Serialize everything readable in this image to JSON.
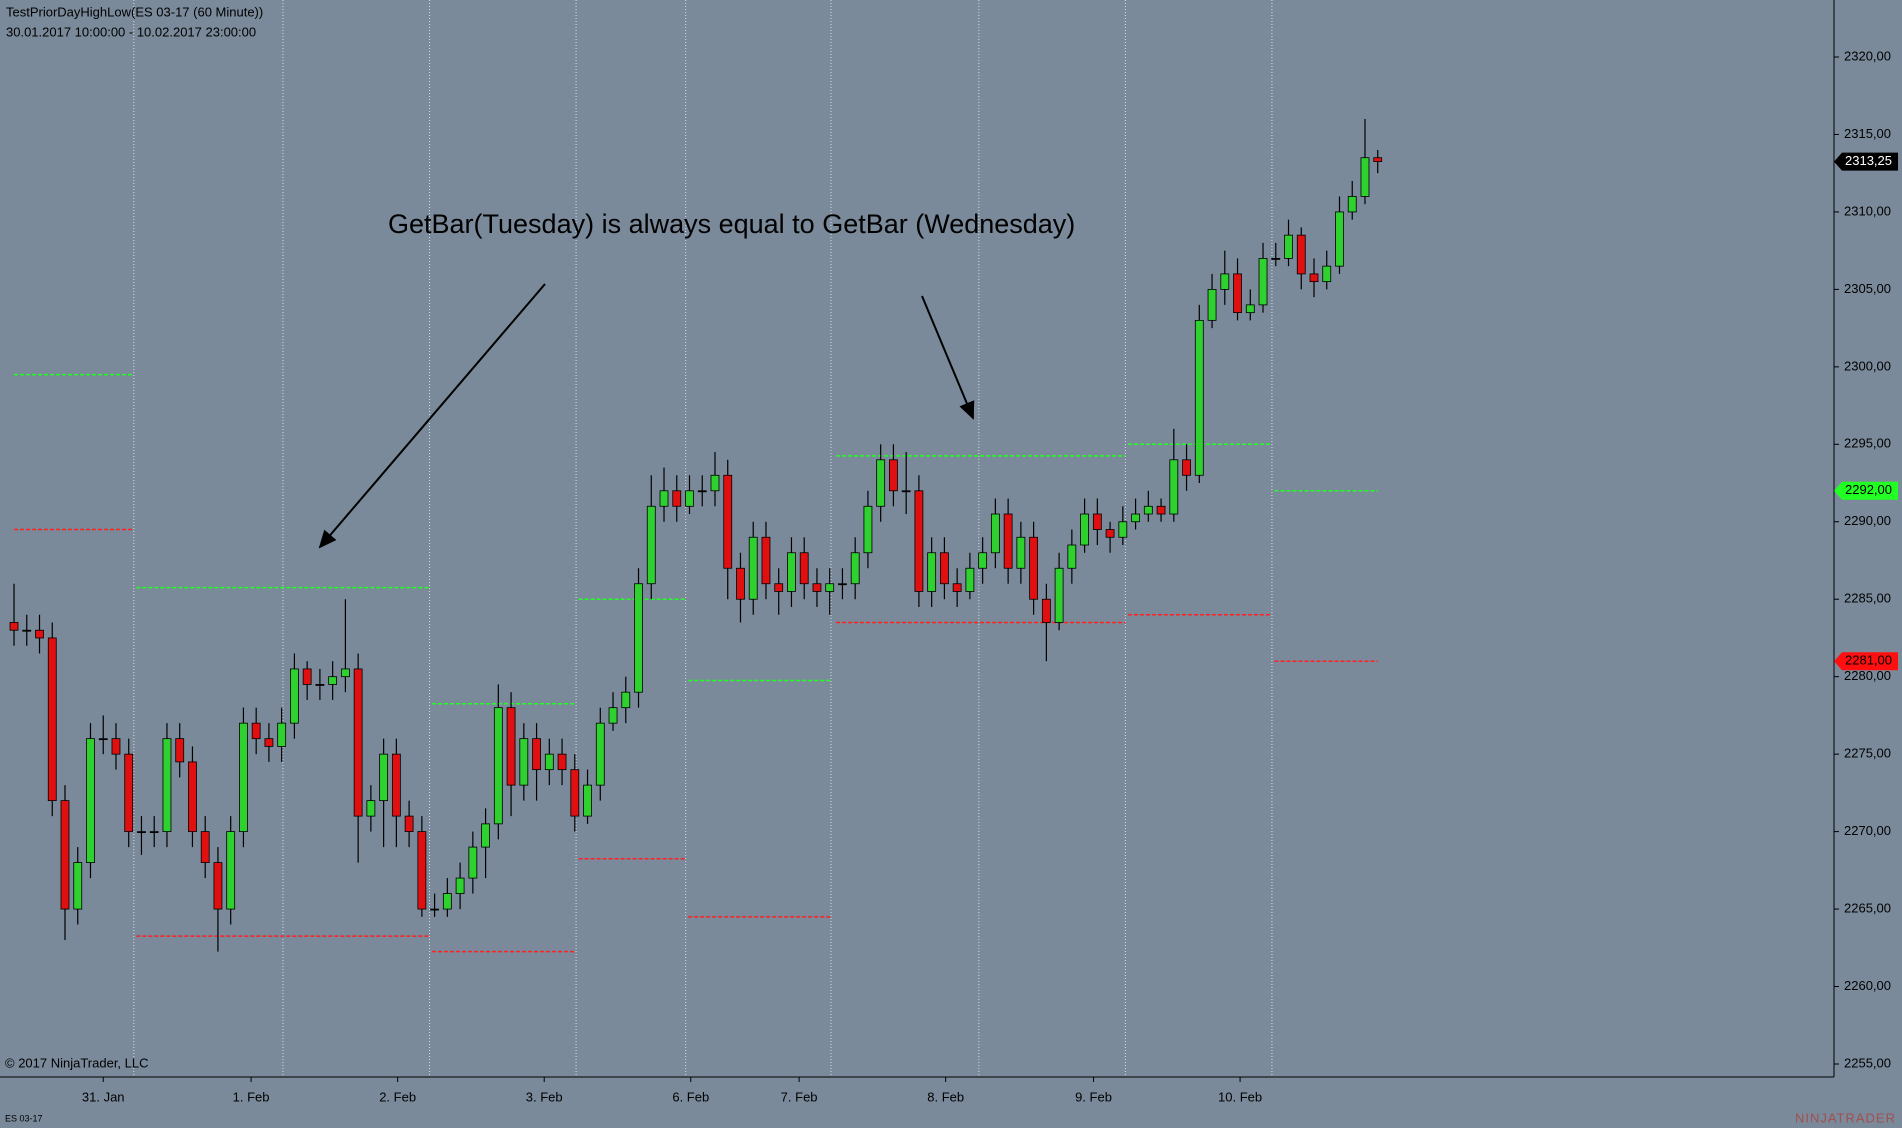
{
  "header": {
    "title": "TestPriorDayHighLow(ES 03-17 (60 Minute))",
    "range": "30.01.2017 10:00:00 - 10.02.2017 23:00:00"
  },
  "chart_data": {
    "type": "candlestick",
    "annotation": "GetBar(Tuesday) is always equal to GetBar (Wednesday)",
    "open": [
      2283.5,
      2283,
      2283,
      2282.5,
      2272,
      2265,
      2268,
      2276,
      2276,
      2275,
      2270,
      2270,
      2270,
      2276,
      2274.5,
      2270,
      2268,
      2265,
      2270,
      2277,
      2276,
      2275.5,
      2277,
      2280.5,
      2279.5,
      2279.5,
      2280,
      2280.5,
      2271,
      2272,
      2275,
      2271,
      2270,
      2265,
      2265,
      2266,
      2267,
      2269,
      2270.5,
      2278,
      2273,
      2276,
      2274,
      2275,
      2274,
      2271,
      2273,
      2277,
      2278,
      2279,
      2286,
      2291,
      2292,
      2291,
      2292,
      2292,
      2293,
      2287,
      2285,
      2289,
      2286,
      2285.5,
      2288,
      2286,
      2285.5,
      2286,
      2286,
      2288,
      2291,
      2294,
      2292,
      2292,
      2285.5,
      2288,
      2286,
      2285.5,
      2287,
      2288,
      2290.5,
      2287,
      2289,
      2285,
      2283.5,
      2287,
      2288.5,
      2290.5,
      2289.5,
      2289,
      2290,
      2290.5,
      2291,
      2290.5,
      2294,
      2293,
      2303,
      2305,
      2306,
      2303.5,
      2304,
      2307,
      2307,
      2308.5,
      2306,
      2305.5,
      2306.5,
      2310,
      2311,
      2313.5
    ],
    "high": [
      2286,
      2284,
      2284,
      2283.5,
      2273,
      2269,
      2277,
      2277.5,
      2277,
      2276,
      2271,
      2271,
      2277,
      2277,
      2275.5,
      2271,
      2269,
      2271,
      2278,
      2278,
      2277,
      2278,
      2281.5,
      2281,
      2280.5,
      2281,
      2285,
      2281.5,
      2273,
      2276,
      2276,
      2272,
      2271,
      2266,
      2267,
      2268,
      2270,
      2271.5,
      2279.5,
      2279,
      2277,
      2277,
      2276,
      2276,
      2275,
      2274,
      2278,
      2279,
      2280,
      2287,
      2293,
      2293.5,
      2293,
      2293,
      2293,
      2294.5,
      2294,
      2288,
      2290,
      2290,
      2287,
      2289,
      2289,
      2287,
      2287,
      2287,
      2289,
      2292,
      2295,
      2295,
      2294.5,
      2293,
      2289,
      2289,
      2287,
      2288,
      2289,
      2291.5,
      2291.5,
      2290,
      2290,
      2286,
      2288,
      2289.5,
      2291.5,
      2291.5,
      2290,
      2291,
      2291.5,
      2292,
      2291.5,
      2296,
      2295,
      2304,
      2306,
      2307.5,
      2307,
      2305,
      2308,
      2308,
      2309.5,
      2309,
      2307,
      2307.5,
      2311,
      2312,
      2316,
      2314
    ],
    "low": [
      2282,
      2282,
      2281.5,
      2271,
      2263,
      2264,
      2267,
      2275,
      2274,
      2269,
      2268.5,
      2269,
      2269,
      2273.5,
      2269,
      2267,
      2262.25,
      2264,
      2269,
      2275,
      2274.5,
      2274.5,
      2276,
      2278.5,
      2278.5,
      2278.5,
      2279,
      2268,
      2270,
      2269,
      2269,
      2269,
      2264.5,
      2264.5,
      2264.5,
      2265,
      2266,
      2267,
      2269.5,
      2271,
      2272,
      2272,
      2273,
      2273,
      2270,
      2270.5,
      2272,
      2276.5,
      2277,
      2278,
      2285,
      2290,
      2290,
      2290.5,
      2291,
      2291,
      2285,
      2283.5,
      2284,
      2285,
      2284,
      2284.5,
      2285,
      2284.5,
      2284,
      2285,
      2285,
      2287,
      2290,
      2291,
      2290.5,
      2284.5,
      2284.5,
      2285,
      2284.5,
      2285,
      2286,
      2287,
      2286,
      2286,
      2284,
      2281,
      2283,
      2286,
      2288,
      2288.5,
      2288,
      2288.5,
      2289.5,
      2290,
      2290,
      2290,
      2292,
      2292.5,
      2302.5,
      2304,
      2303,
      2303,
      2303.5,
      2306.5,
      2306.5,
      2305,
      2304.5,
      2305,
      2306,
      2309.5,
      2310.5,
      2312.5
    ],
    "close": [
      2283,
      2283,
      2282.5,
      2272,
      2265,
      2268,
      2276,
      2276,
      2275,
      2270,
      2270,
      2270,
      2276,
      2274.5,
      2270,
      2268,
      2265,
      2270,
      2277,
      2276,
      2275.5,
      2277,
      2280.5,
      2279.5,
      2279.5,
      2280,
      2280.5,
      2271,
      2272,
      2275,
      2271,
      2270,
      2265,
      2265,
      2266,
      2267,
      2269,
      2270.5,
      2278,
      2273,
      2276,
      2274,
      2275,
      2274,
      2271,
      2273,
      2277,
      2278,
      2279,
      2286,
      2291,
      2292,
      2291,
      2292,
      2292,
      2293,
      2287,
      2285,
      2289,
      2286,
      2285.5,
      2288,
      2286,
      2285.5,
      2286,
      2286,
      2288,
      2291,
      2294,
      2292,
      2292,
      2285.5,
      2288,
      2286,
      2285.5,
      2287,
      2288,
      2290.5,
      2287,
      2289,
      2285,
      2283.5,
      2287,
      2288.5,
      2290.5,
      2289.5,
      2289,
      2290,
      2290.5,
      2291,
      2290.5,
      2294,
      2293,
      2303,
      2305,
      2306,
      2303.5,
      2304,
      2307,
      2307,
      2308.5,
      2306,
      2305.5,
      2306.5,
      2310,
      2311,
      2313.5,
      2313.25
    ],
    "up_color": "#2ed12e",
    "down_color": "#e01010",
    "doji_color": "#000000",
    "xlim": [
      -1.1,
      142.8
    ],
    "ylim": [
      2254.16,
      2323.68
    ],
    "yticks": [
      {
        "value": 2255,
        "label": "2255,00"
      },
      {
        "value": 2260,
        "label": "2260,00"
      },
      {
        "value": 2265,
        "label": "2265,00"
      },
      {
        "value": 2270,
        "label": "2270,00"
      },
      {
        "value": 2275,
        "label": "2275,00"
      },
      {
        "value": 2280,
        "label": "2280,00"
      },
      {
        "value": 2285,
        "label": "2285,00"
      },
      {
        "value": 2290,
        "label": "2290,00"
      },
      {
        "value": 2295,
        "label": "2295,00"
      },
      {
        "value": 2300,
        "label": "2300,00"
      },
      {
        "value": 2305,
        "label": "2305,00"
      },
      {
        "value": 2310,
        "label": "2310,00"
      },
      {
        "value": 2315,
        "label": "2315,00"
      },
      {
        "value": 2320,
        "label": "2320,00"
      }
    ],
    "xticks": [
      {
        "value": 7.0,
        "label": "31. Jan"
      },
      {
        "value": 18.6,
        "label": "1. Feb"
      },
      {
        "value": 30.1,
        "label": "2. Feb"
      },
      {
        "value": 41.6,
        "label": "3. Feb"
      },
      {
        "value": 53.1,
        "label": "6. Feb"
      },
      {
        "value": 61.6,
        "label": "7. Feb"
      },
      {
        "value": 73.1,
        "label": "8. Feb"
      },
      {
        "value": 84.7,
        "label": "9. Feb"
      },
      {
        "value": 96.2,
        "label": "10. Feb"
      }
    ],
    "session_breaks": [
      9.4,
      21.1,
      32.6,
      44.1,
      52.7,
      64.1,
      75.7,
      87.2,
      98.7
    ],
    "high_color": "#22ff22",
    "low_color": "#ff2020",
    "levels": [
      {
        "x": [
          0,
          9.4
        ],
        "high": 2299.5,
        "low": 2289.5
      },
      {
        "x": [
          9.6,
          32.6
        ],
        "high": 2285.75,
        "low": 2263.25
      },
      {
        "x": [
          32.8,
          44.1
        ],
        "high": 2278.25,
        "low": 2262.25
      },
      {
        "x": [
          44.3,
          52.7
        ],
        "high": 2285,
        "low": 2268.25
      },
      {
        "x": [
          52.9,
          64.1
        ],
        "high": 2279.75,
        "low": 2264.5
      },
      {
        "x": [
          64.5,
          87.2
        ],
        "high": 2294.25,
        "low": 2283.5
      },
      {
        "x": [
          87.4,
          98.7
        ],
        "high": 2295,
        "low": 2284
      },
      {
        "x": [
          98.9,
          107
        ],
        "high": 2292,
        "low": 2281
      }
    ],
    "price_markers": [
      {
        "value": 2313.25,
        "label": "2313,25",
        "color": "#000000",
        "text_color": "#ffffff"
      },
      {
        "value": 2292,
        "label": "2292,00",
        "color": "#22ff22",
        "text_color": "#000000"
      },
      {
        "value": 2281,
        "label": "2281,00",
        "color": "#ff1010",
        "text_color": "#000000"
      }
    ]
  },
  "footer": {
    "copyright": "© 2017 NinjaTrader, LLC",
    "instrument": "ES 03-17",
    "logo": "NINJATRADER"
  }
}
